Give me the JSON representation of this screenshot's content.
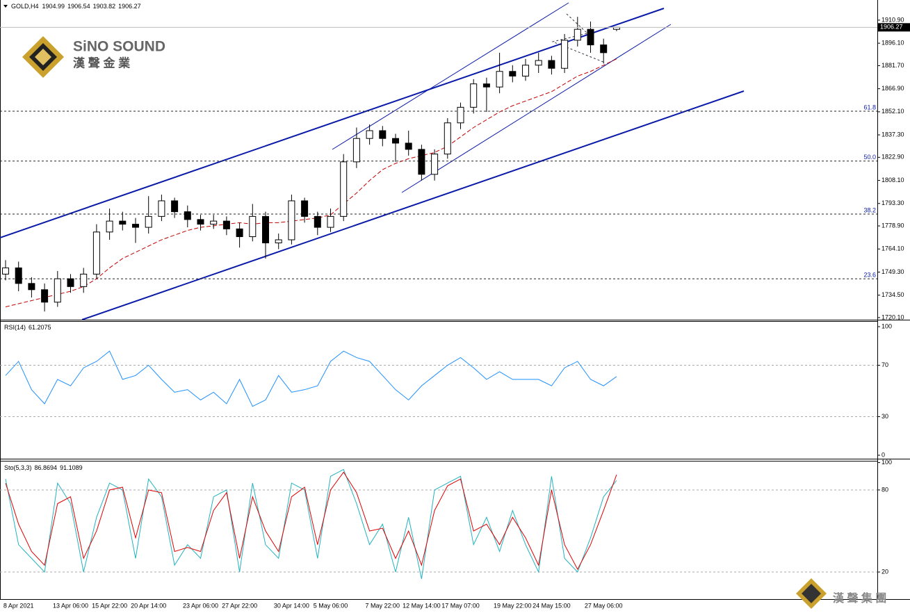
{
  "branding": {
    "brand": "SiNO SOUND",
    "brand_cn": "漢 聲 金 業",
    "footer_cn": "漢 聲 集 團"
  },
  "chart_data": [
    {
      "type": "candlestick",
      "title": "GOLD,H4",
      "categories": [
        null,
        "8 Apr 2021",
        null,
        null,
        null,
        "13 Apr 06:00",
        null,
        null,
        "15 Apr 22:00",
        null,
        null,
        "20 Apr 14:00",
        null,
        null,
        null,
        "23 Apr 06:00",
        null,
        null,
        "27 Apr 22:00",
        null,
        null,
        null,
        "30 Apr 14:00",
        null,
        null,
        "5 May 06:00",
        null,
        null,
        null,
        "7 May 22:00",
        null,
        null,
        "12 May 14:00",
        null,
        null,
        "17 May 07:00",
        null,
        null,
        null,
        "19 May 22:00",
        null,
        null,
        "24 May 15:00",
        null,
        null,
        null,
        "27 May 06:00",
        null
      ],
      "open": [
        1748,
        1752,
        1742,
        1738,
        1730,
        1745,
        1740,
        1748,
        1775,
        1782,
        1780,
        1778,
        1785,
        1795,
        1788,
        1783,
        1780,
        1782,
        1777,
        1772,
        1785,
        1768,
        1770,
        1795,
        1785,
        1778,
        1785,
        1820,
        1835,
        1840,
        1835,
        1832,
        1828,
        1812,
        1825,
        1845,
        1855,
        1870,
        1868,
        1878,
        1875,
        1882,
        1885,
        1880,
        1898,
        1905,
        1895,
        1904.99
      ],
      "high": [
        1757,
        1756,
        1746,
        1742,
        1750,
        1748,
        1752,
        1780,
        1790,
        1788,
        1784,
        1798,
        1799,
        1797,
        1792,
        1786,
        1786,
        1785,
        1781,
        1793,
        1788,
        1774,
        1799,
        1797,
        1788,
        1790,
        1825,
        1842,
        1844,
        1843,
        1838,
        1840,
        1831,
        1828,
        1848,
        1858,
        1873,
        1874,
        1890,
        1882,
        1886,
        1890,
        1888,
        1902,
        1913,
        1910,
        1899,
        1906.54
      ],
      "low": [
        1744,
        1737,
        1733,
        1724,
        1727,
        1736,
        1736,
        1745,
        1770,
        1776,
        1768,
        1774,
        1782,
        1784,
        1778,
        1776,
        1777,
        1773,
        1765,
        1769,
        1758,
        1764,
        1767,
        1781,
        1773,
        1775,
        1782,
        1816,
        1831,
        1830,
        1820,
        1824,
        1808,
        1808,
        1822,
        1841,
        1851,
        1852,
        1864,
        1871,
        1872,
        1877,
        1876,
        1877,
        1894,
        1890,
        1883,
        1903.82
      ],
      "close": [
        1752,
        1742,
        1738,
        1730,
        1745,
        1740,
        1748,
        1775,
        1782,
        1780,
        1778,
        1785,
        1795,
        1788,
        1783,
        1780,
        1782,
        1777,
        1772,
        1785,
        1768,
        1770,
        1795,
        1785,
        1778,
        1785,
        1820,
        1835,
        1840,
        1835,
        1832,
        1828,
        1812,
        1825,
        1845,
        1855,
        1870,
        1868,
        1878,
        1875,
        1882,
        1885,
        1880,
        1898,
        1905,
        1895,
        1890,
        1906.27
      ],
      "up_color": "#ffffff",
      "down_color": "#000000",
      "ma_color": "#c00000",
      "ma_values": [
        1727,
        1729,
        1731,
        1733,
        1735,
        1737,
        1740,
        1745,
        1752,
        1758,
        1762,
        1766,
        1770,
        1773,
        1776,
        1778,
        1779,
        1780,
        1781,
        1780,
        1781,
        1781,
        1782,
        1783,
        1784,
        1786,
        1793,
        1800,
        1808,
        1815,
        1819,
        1822,
        1824,
        1826,
        1830,
        1836,
        1842,
        1847,
        1852,
        1856,
        1859,
        1862,
        1865,
        1870,
        1875,
        1878,
        1882,
        1886
      ],
      "fib_levels": [
        {
          "price": 1852.5,
          "label": "61.8"
        },
        {
          "price": 1820.5,
          "label": "50.0"
        },
        {
          "price": 1786.5,
          "label": "38.2"
        },
        {
          "price": 1745,
          "label": "23.6"
        }
      ],
      "ylim": [
        1718.75,
        1923.8
      ],
      "yticks": [
        {
          "value": 1720.1,
          "label": "1720.10"
        },
        {
          "value": 1734.5,
          "label": "1734.50"
        },
        {
          "value": 1749.3,
          "label": "1749.30"
        },
        {
          "value": 1764.1,
          "label": "1764.10"
        },
        {
          "value": 1778.9,
          "label": "1778.90"
        },
        {
          "value": 1793.3,
          "label": "1793.30"
        },
        {
          "value": 1808.1,
          "label": "1808.10"
        },
        {
          "value": 1822.9,
          "label": "1822.90"
        },
        {
          "value": 1837.3,
          "label": "1837.30"
        },
        {
          "value": 1852.1,
          "label": "1852.10"
        },
        {
          "value": 1866.9,
          "label": "1866.90"
        },
        {
          "value": 1881.7,
          "label": "1881.70"
        },
        {
          "value": 1896.1,
          "label": "1896.10"
        },
        {
          "value": 1910.9,
          "label": "1910.90"
        }
      ]
    },
    {
      "type": "line",
      "title": "RSI(14)",
      "series": [
        {
          "color": "#1e90ff",
          "values": [
            62,
            73,
            51,
            40,
            59,
            54,
            68,
            73,
            81,
            59,
            62,
            70,
            59,
            49,
            51,
            43,
            49,
            40,
            59,
            38,
            43,
            62,
            49,
            51,
            54,
            73,
            81,
            76,
            73,
            62,
            51,
            43,
            54,
            62,
            70,
            76,
            68,
            59,
            65,
            59,
            59,
            59,
            54,
            68,
            73,
            59,
            54,
            61.2075
          ]
        }
      ],
      "levels": [
        30,
        70
      ],
      "ylim": [
        -2.7,
        103.8
      ],
      "yticks": [
        0,
        30,
        70,
        100
      ]
    },
    {
      "type": "line",
      "title": "Sto(5,3,3)",
      "series": [
        {
          "color": "#20b2c0",
          "values": [
            88,
            40,
            30,
            20,
            85,
            70,
            20,
            60,
            85,
            80,
            30,
            88,
            75,
            25,
            40,
            30,
            75,
            80,
            20,
            85,
            40,
            30,
            85,
            80,
            30,
            90,
            95,
            70,
            40,
            55,
            20,
            60,
            15,
            80,
            85,
            90,
            40,
            60,
            35,
            65,
            40,
            20,
            90,
            30,
            20,
            45,
            75,
            86.8694
          ]
        },
        {
          "color": "#e00000",
          "values": [
            85,
            55,
            35,
            25,
            70,
            75,
            30,
            50,
            80,
            82,
            45,
            80,
            78,
            35,
            38,
            35,
            65,
            78,
            30,
            75,
            50,
            35,
            75,
            82,
            40,
            80,
            93,
            78,
            50,
            52,
            30,
            50,
            25,
            65,
            83,
            88,
            50,
            55,
            40,
            60,
            45,
            25,
            80,
            40,
            22,
            40,
            65,
            91.1089
          ]
        }
      ],
      "levels": [
        20,
        80
      ],
      "ylim": [
        0.2,
        100.3
      ],
      "yticks": [
        20,
        80,
        100
      ]
    }
  ]
}
